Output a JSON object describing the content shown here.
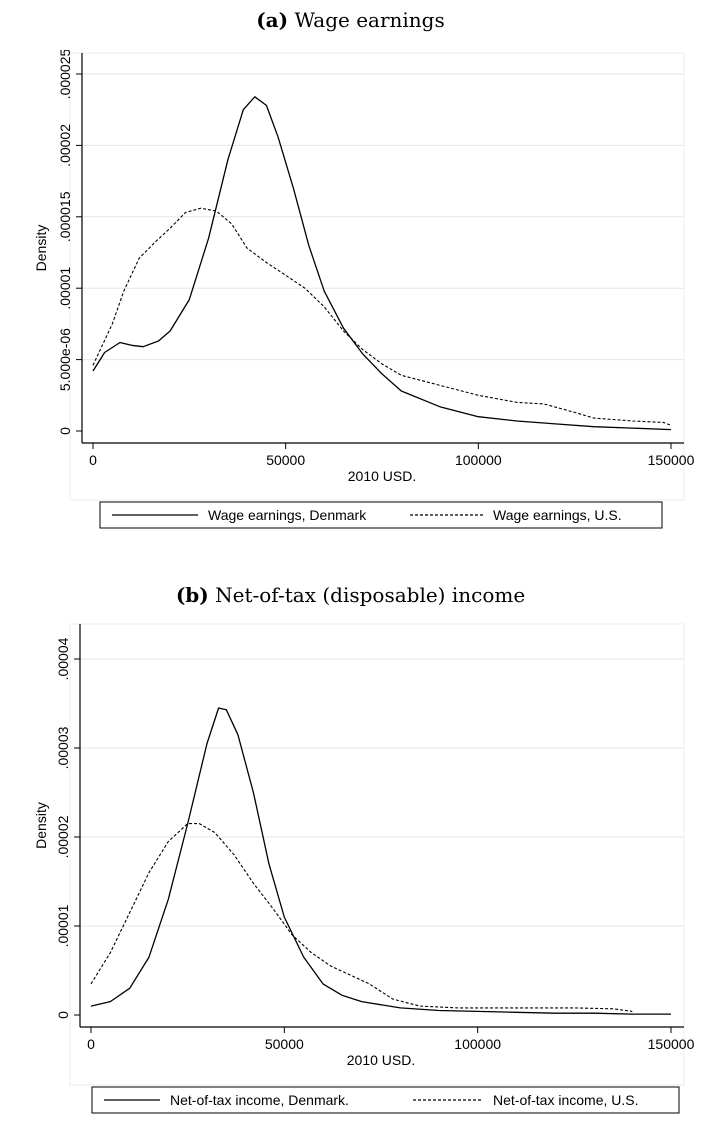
{
  "chart_data": [
    {
      "type": "line",
      "caption_label": "(a)",
      "title": "Wage earnings",
      "xlabel": "2010 USD.",
      "ylabel": "Density",
      "xlim": [
        0,
        150000
      ],
      "ylim": [
        0,
        2.5e-05
      ],
      "x_ticks": [
        0,
        50000,
        100000,
        150000
      ],
      "x_tick_labels": [
        "0",
        "50000",
        "100000",
        "150000"
      ],
      "y_ticks": [
        0,
        5e-06,
        1e-05,
        1.5e-05,
        2e-05,
        2.5e-05
      ],
      "y_tick_labels": [
        "0",
        "5.000e-06",
        ".00001",
        ".000015",
        ".00002",
        ".000025"
      ],
      "grid": true,
      "legend_position": "bottom",
      "series": [
        {
          "name": "Wage earnings, Denmark",
          "style": "solid",
          "points": [
            [
              0,
              4.2e-06
            ],
            [
              3000,
              5.5e-06
            ],
            [
              7000,
              6.2e-06
            ],
            [
              10000,
              6e-06
            ],
            [
              13000,
              5.9e-06
            ],
            [
              17000,
              6.3e-06
            ],
            [
              20000,
              7e-06
            ],
            [
              25000,
              9.2e-06
            ],
            [
              30000,
              1.35e-05
            ],
            [
              35000,
              1.9e-05
            ],
            [
              39000,
              2.25e-05
            ],
            [
              42000,
              2.34e-05
            ],
            [
              45000,
              2.28e-05
            ],
            [
              48000,
              2.06e-05
            ],
            [
              52000,
              1.7e-05
            ],
            [
              56000,
              1.3e-05
            ],
            [
              60000,
              9.8e-06
            ],
            [
              65000,
              7.2e-06
            ],
            [
              70000,
              5.4e-06
            ],
            [
              75000,
              4e-06
            ],
            [
              80000,
              2.8e-06
            ],
            [
              90000,
              1.7e-06
            ],
            [
              100000,
              1e-06
            ],
            [
              110000,
              7e-07
            ],
            [
              120000,
              5e-07
            ],
            [
              130000,
              3e-07
            ],
            [
              140000,
              2e-07
            ],
            [
              150000,
              1e-07
            ]
          ]
        },
        {
          "name": "Wage earnings, U.S.",
          "style": "dashed",
          "points": [
            [
              0,
              4.6e-06
            ],
            [
              5000,
              7.5e-06
            ],
            [
              8000,
              9.8e-06
            ],
            [
              12000,
              1.21e-05
            ],
            [
              16000,
              1.32e-05
            ],
            [
              20000,
              1.42e-05
            ],
            [
              24000,
              1.53e-05
            ],
            [
              28000,
              1.56e-05
            ],
            [
              32000,
              1.54e-05
            ],
            [
              36000,
              1.45e-05
            ],
            [
              40000,
              1.28e-05
            ],
            [
              45000,
              1.18e-05
            ],
            [
              50000,
              1.09e-05
            ],
            [
              55000,
              1e-05
            ],
            [
              60000,
              8.7e-06
            ],
            [
              65000,
              7e-06
            ],
            [
              70000,
              5.7e-06
            ],
            [
              75000,
              4.7e-06
            ],
            [
              80000,
              3.9e-06
            ],
            [
              90000,
              3.2e-06
            ],
            [
              100000,
              2.5e-06
            ],
            [
              110000,
              2e-06
            ],
            [
              117000,
              1.9e-06
            ],
            [
              125000,
              1.3e-06
            ],
            [
              130000,
              9e-07
            ],
            [
              140000,
              7e-07
            ],
            [
              148000,
              6e-07
            ],
            [
              150000,
              4e-07
            ]
          ]
        }
      ]
    },
    {
      "type": "line",
      "caption_label": "(b)",
      "title": "Net-of-tax (disposable) income",
      "xlabel": "2010 USD.",
      "ylabel": "Density",
      "xlim": [
        0,
        150000
      ],
      "ylim": [
        0,
        4e-05
      ],
      "x_ticks": [
        0,
        50000,
        100000,
        150000
      ],
      "x_tick_labels": [
        "0",
        "50000",
        "100000",
        "150000"
      ],
      "y_ticks": [
        0,
        1e-05,
        2e-05,
        3e-05,
        4e-05
      ],
      "y_tick_labels": [
        "0",
        ".00001",
        ".00002",
        ".00003",
        ".00004"
      ],
      "grid": true,
      "legend_position": "bottom",
      "series": [
        {
          "name": "Net-of-tax income, Denmark.",
          "style": "solid",
          "points": [
            [
              0,
              1e-06
            ],
            [
              5000,
              1.5e-06
            ],
            [
              10000,
              3e-06
            ],
            [
              15000,
              6.5e-06
            ],
            [
              20000,
              1.3e-05
            ],
            [
              25000,
              2.15e-05
            ],
            [
              30000,
              3.05e-05
            ],
            [
              33000,
              3.45e-05
            ],
            [
              35000,
              3.43e-05
            ],
            [
              38000,
              3.15e-05
            ],
            [
              42000,
              2.5e-05
            ],
            [
              46000,
              1.7e-05
            ],
            [
              50000,
              1.1e-05
            ],
            [
              55000,
              6.5e-06
            ],
            [
              60000,
              3.5e-06
            ],
            [
              65000,
              2.2e-06
            ],
            [
              70000,
              1.5e-06
            ],
            [
              80000,
              8e-07
            ],
            [
              90000,
              5e-07
            ],
            [
              100000,
              4e-07
            ],
            [
              110000,
              3e-07
            ],
            [
              120000,
              2e-07
            ],
            [
              130000,
              2e-07
            ],
            [
              140000,
              1e-07
            ],
            [
              150000,
              1e-07
            ]
          ]
        },
        {
          "name": "Net-of-tax income, U.S.",
          "style": "dashed",
          "points": [
            [
              0,
              3.5e-06
            ],
            [
              5000,
              7e-06
            ],
            [
              10000,
              1.15e-05
            ],
            [
              15000,
              1.6e-05
            ],
            [
              20000,
              1.95e-05
            ],
            [
              25000,
              2.15e-05
            ],
            [
              28000,
              2.15e-05
            ],
            [
              32000,
              2.05e-05
            ],
            [
              37000,
              1.8e-05
            ],
            [
              42000,
              1.48e-05
            ],
            [
              47000,
              1.2e-05
            ],
            [
              52000,
              9e-06
            ],
            [
              57000,
              7e-06
            ],
            [
              62000,
              5.5e-06
            ],
            [
              67000,
              4.5e-06
            ],
            [
              72000,
              3.5e-06
            ],
            [
              78000,
              1.8e-06
            ],
            [
              85000,
              1e-06
            ],
            [
              95000,
              8e-07
            ],
            [
              110000,
              8e-07
            ],
            [
              125000,
              8e-07
            ],
            [
              135000,
              7e-07
            ],
            [
              140000,
              4e-07
            ]
          ]
        }
      ]
    }
  ]
}
